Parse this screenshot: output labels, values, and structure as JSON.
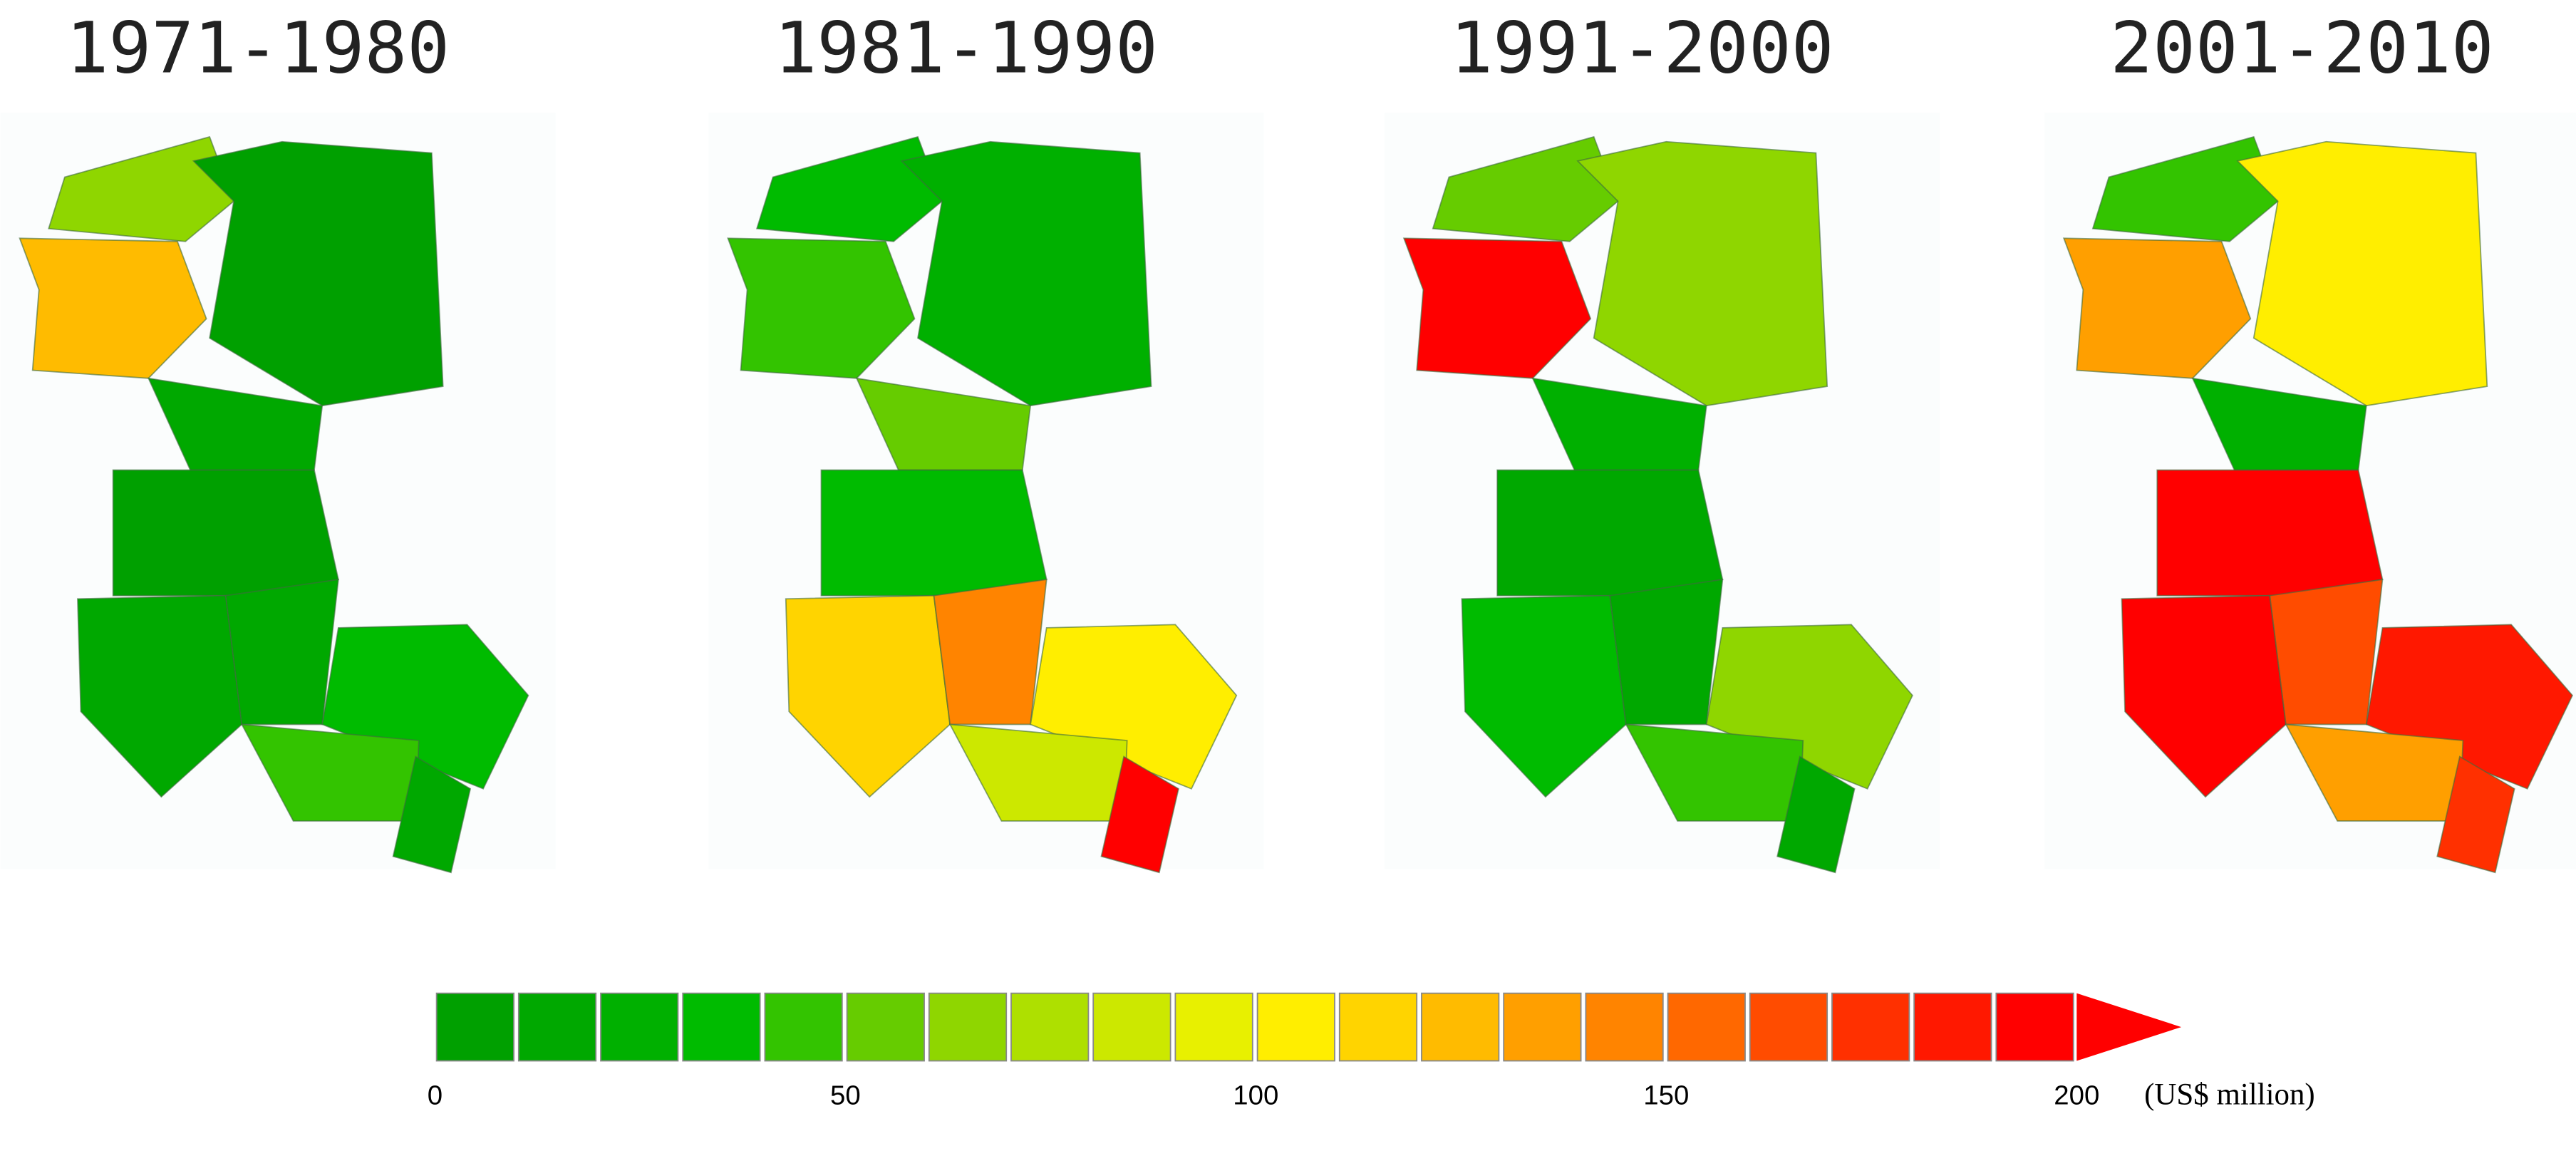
{
  "panels": [
    {
      "title": "1971-1980",
      "region_colors": [
        "#8fd600",
        "#ffbb00",
        "#00a000",
        "#00a800",
        "#00a000",
        "#00a800",
        "#00a800",
        "#00bb00",
        "#33c400",
        "#00a800"
      ]
    },
    {
      "title": "1981-1990",
      "region_colors": [
        "#00bb00",
        "#33c400",
        "#00b000",
        "#66cc00",
        "#00bb00",
        "#ffd400",
        "#ff8400",
        "#ffee00",
        "#cce800",
        "#ff0000"
      ]
    },
    {
      "title": "1991-2000",
      "region_colors": [
        "#66cc00",
        "#ff0000",
        "#8fd600",
        "#00b000",
        "#00a800",
        "#00bb00",
        "#00a800",
        "#8fd600",
        "#33c400",
        "#00a800"
      ]
    },
    {
      "title": "2001-2010",
      "region_colors": [
        "#33c400",
        "#ff9f00",
        "#ffee00",
        "#00b000",
        "#ff0000",
        "#ff0000",
        "#ff4c00",
        "#ff1800",
        "#ff9f00",
        "#ff3000"
      ]
    }
  ],
  "colorbar": {
    "colors": [
      "#00a000",
      "#00a800",
      "#00b000",
      "#00bb00",
      "#33c400",
      "#66cc00",
      "#8fd600",
      "#aee000",
      "#cce800",
      "#e8f000",
      "#ffee00",
      "#ffd400",
      "#ffbb00",
      "#ff9f00",
      "#ff8400",
      "#ff6800",
      "#ff4c00",
      "#ff3000",
      "#ff1800",
      "#ff0000"
    ],
    "arrow_color": "#ff0000",
    "range": [
      0,
      200
    ],
    "ticks": [
      0,
      50,
      100,
      150,
      200
    ],
    "unit": "(US$ million)"
  }
}
